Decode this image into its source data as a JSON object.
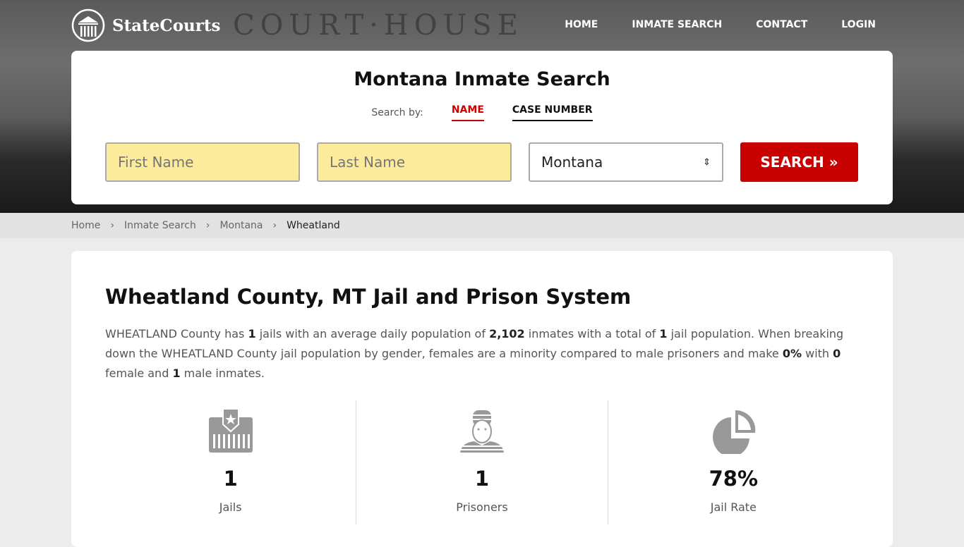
{
  "header": {
    "logo": "StateCourts",
    "nav": [
      "HOME",
      "INMATE SEARCH",
      "CONTACT",
      "LOGIN"
    ],
    "background_text": "COURT·HOUSE"
  },
  "search": {
    "title": "Montana Inmate Search",
    "search_by": "Search by:",
    "tabs": [
      "NAME",
      "CASE NUMBER"
    ],
    "first_placeholder": "First Name",
    "last_placeholder": "Last Name",
    "state": "Montana",
    "button": "SEARCH »"
  },
  "breadcrumb": [
    "Home",
    "Inmate Search",
    "Montana",
    "Wheatland"
  ],
  "main": {
    "title": "Wheatland County, MT Jail and Prison System",
    "p": [
      "WHEATLAND County has ",
      "1",
      " jails with an average daily population of ",
      "2,102",
      " inmates with a total of ",
      "1",
      " jail population. When breaking down the WHEATLAND County jail population by gender, females are a minority compared to male prisoners and make ",
      "0%",
      " with ",
      "0",
      " female and ",
      "1",
      " male inmates."
    ],
    "stats": [
      {
        "value": "1",
        "label": "Jails",
        "icon": "jail-icon"
      },
      {
        "value": "1",
        "label": "Prisoners",
        "icon": "prisoner-icon"
      },
      {
        "value": "78%",
        "label": "Jail Rate",
        "icon": "pie-chart-icon"
      }
    ]
  },
  "colors": {
    "accent": "#c80000",
    "input_bg": "#fdeb9c"
  }
}
